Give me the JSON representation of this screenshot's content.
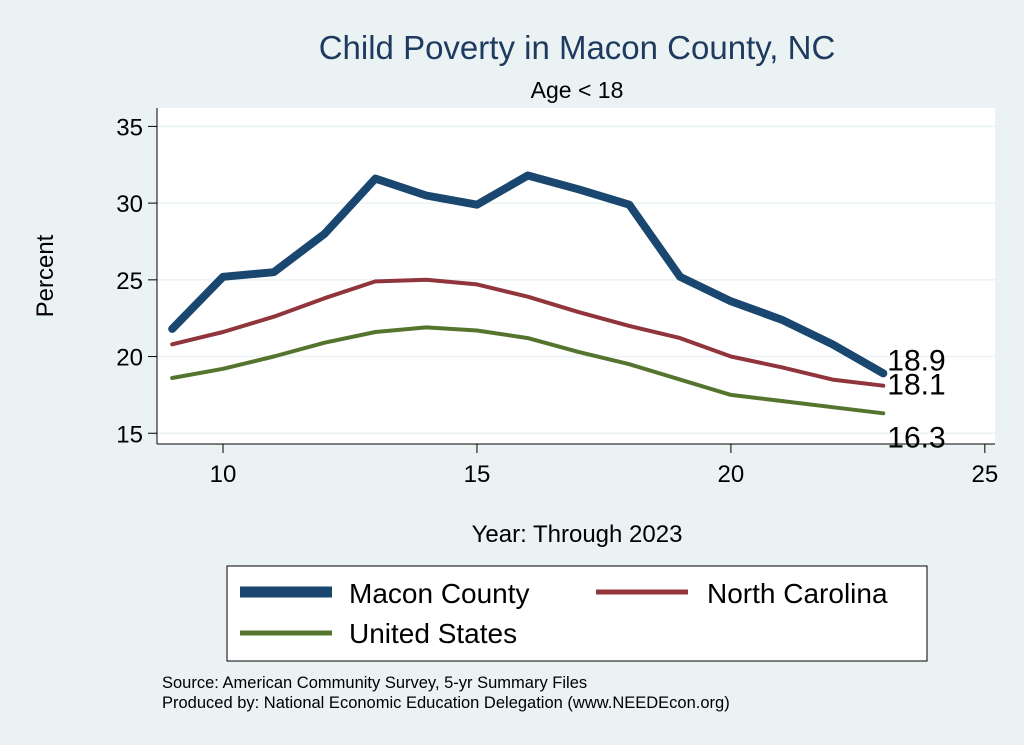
{
  "chart_data": {
    "type": "line",
    "title": "Child Poverty in Macon County, NC",
    "subtitle": "Age < 18",
    "xlabel": "Year: Through 2023",
    "ylabel": "Percent",
    "xlim": [
      8.7,
      25.2
    ],
    "ylim": [
      14.3,
      36.2
    ],
    "xticks": [
      10,
      15,
      20,
      25
    ],
    "yticks": [
      15,
      20,
      25,
      30,
      35
    ],
    "grid": true,
    "legend_position": "bottom",
    "x": [
      9,
      10,
      11,
      12,
      13,
      14,
      15,
      16,
      17,
      18,
      19,
      20,
      21,
      22,
      23
    ],
    "series": [
      {
        "name": "Macon County",
        "color": "#1a476f",
        "width": "thick",
        "values": [
          21.8,
          25.2,
          25.5,
          28.0,
          31.6,
          30.5,
          29.9,
          31.8,
          30.9,
          29.9,
          25.2,
          23.6,
          22.4,
          20.8,
          18.9
        ],
        "end_label": "18.9"
      },
      {
        "name": "North Carolina",
        "color": "#90353b",
        "width": "medium",
        "values": [
          20.8,
          21.6,
          22.6,
          23.8,
          24.9,
          25.0,
          24.7,
          23.9,
          22.9,
          22.0,
          21.2,
          20.0,
          19.3,
          18.5,
          18.1
        ],
        "end_label": "18.1"
      },
      {
        "name": "United States",
        "color": "#55752f",
        "width": "medium",
        "values": [
          18.6,
          19.2,
          20.0,
          20.9,
          21.6,
          21.9,
          21.7,
          21.2,
          20.3,
          19.5,
          18.5,
          17.5,
          17.1,
          16.7,
          16.3
        ],
        "end_label": "16.3"
      }
    ]
  },
  "notes": {
    "source": "Source: American Community Survey, 5-yr Summary Files",
    "produced_by": "Produced by: National Economic Education Delegation (www.NEEDEcon.org)"
  }
}
